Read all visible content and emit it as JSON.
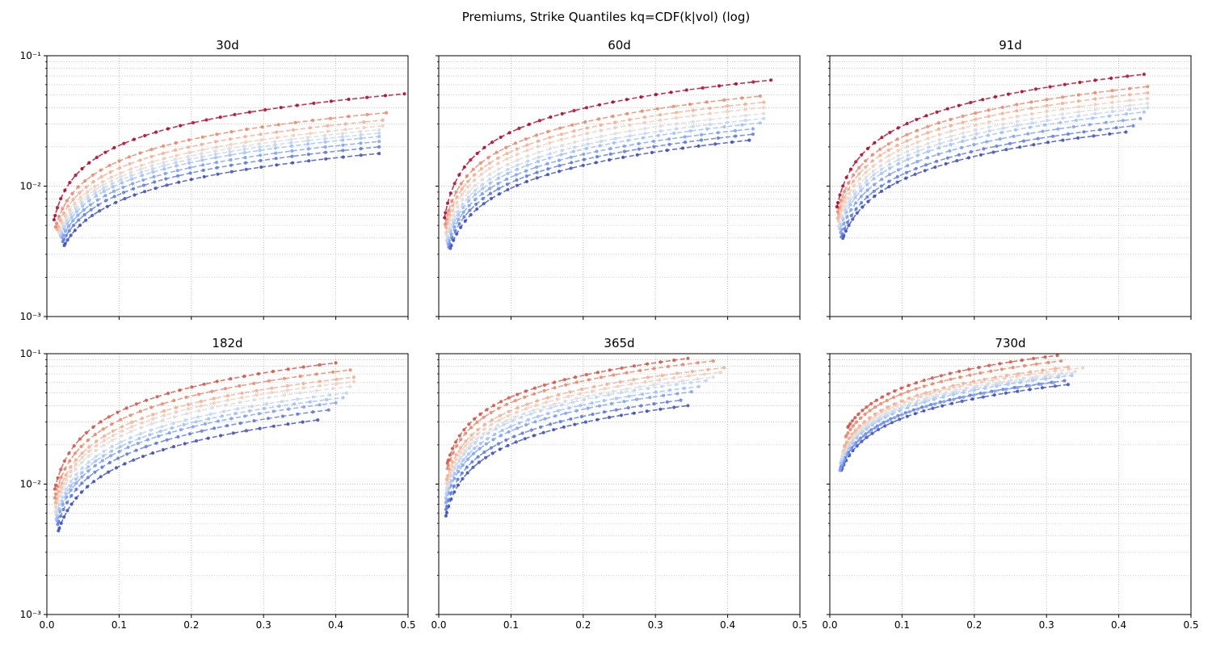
{
  "figure": {
    "title": "Premiums, Strike Quantiles kq=CDF(k|vol) (log)"
  },
  "colors": {
    "palette": [
      "#3b4cc0",
      "#5a78e4",
      "#7b9ff9",
      "#9ebeff",
      "#c0d4f5",
      "#dddcdc",
      "#f2cbb7",
      "#f7ac8e",
      "#ee8468",
      "#d65244",
      "#b40426"
    ]
  },
  "chart_data": [
    {
      "type": "line",
      "title": "30d",
      "xlim": [
        0,
        0.5
      ],
      "ylim": [
        0.001,
        0.1
      ],
      "yscale": "log",
      "grid": "major and minor, dotted",
      "xticks": [
        "0.0",
        "0.1",
        "0.2",
        "0.3",
        "0.4",
        "0.5"
      ],
      "yticks": [
        "10⁻³",
        "10⁻²",
        "10⁻¹"
      ],
      "show_xticklabels": false,
      "show_yticklabels": true,
      "series": [
        {
          "color_index": 0,
          "x0": 0.024,
          "x1": 0.46,
          "y_end": 0.0178,
          "b": 0.55,
          "n": 30
        },
        {
          "color_index": 1,
          "x0": 0.022,
          "x1": 0.46,
          "y_end": 0.02,
          "b": 0.55,
          "n": 30
        },
        {
          "color_index": 2,
          "x0": 0.021,
          "x1": 0.46,
          "y_end": 0.022,
          "b": 0.55,
          "n": 30
        },
        {
          "color_index": 3,
          "x0": 0.019,
          "x1": 0.46,
          "y_end": 0.024,
          "b": 0.55,
          "n": 30
        },
        {
          "color_index": 4,
          "x0": 0.018,
          "x1": 0.46,
          "y_end": 0.0255,
          "b": 0.55,
          "n": 30
        },
        {
          "color_index": 5,
          "x0": 0.017,
          "x1": 0.46,
          "y_end": 0.027,
          "b": 0.55,
          "n": 30
        },
        {
          "color_index": 6,
          "x0": 0.016,
          "x1": 0.465,
          "y_end": 0.029,
          "b": 0.55,
          "n": 30
        },
        {
          "color_index": 7,
          "x0": 0.014,
          "x1": 0.465,
          "y_end": 0.032,
          "b": 0.55,
          "n": 30
        },
        {
          "color_index": 8,
          "x0": 0.012,
          "x1": 0.47,
          "y_end": 0.0365,
          "b": 0.55,
          "n": 30
        },
        {
          "color_index": 10,
          "x0": 0.01,
          "x1": 0.495,
          "y_end": 0.051,
          "b": 0.57,
          "n": 32
        }
      ]
    },
    {
      "type": "line",
      "title": "60d",
      "xlim": [
        0,
        0.5
      ],
      "ylim": [
        0.001,
        0.1
      ],
      "yscale": "log",
      "grid": "major and minor, dotted",
      "xticks": [
        "0.0",
        "0.1",
        "0.2",
        "0.3",
        "0.4",
        "0.5"
      ],
      "yticks": [
        "10⁻³",
        "10⁻²",
        "10⁻¹"
      ],
      "show_xticklabels": false,
      "show_yticklabels": false,
      "series": [
        {
          "color_index": 0,
          "x0": 0.016,
          "x1": 0.43,
          "y_end": 0.0225,
          "b": 0.58,
          "n": 30
        },
        {
          "color_index": 1,
          "x0": 0.014,
          "x1": 0.435,
          "y_end": 0.025,
          "b": 0.58,
          "n": 30
        },
        {
          "color_index": 2,
          "x0": 0.013,
          "x1": 0.435,
          "y_end": 0.0275,
          "b": 0.58,
          "n": 30
        },
        {
          "color_index": 3,
          "x0": 0.012,
          "x1": 0.445,
          "y_end": 0.0305,
          "b": 0.58,
          "n": 30
        },
        {
          "color_index": 4,
          "x0": 0.011,
          "x1": 0.45,
          "y_end": 0.033,
          "b": 0.58,
          "n": 30
        },
        {
          "color_index": 5,
          "x0": 0.011,
          "x1": 0.45,
          "y_end": 0.036,
          "b": 0.58,
          "n": 30
        },
        {
          "color_index": 6,
          "x0": 0.01,
          "x1": 0.45,
          "y_end": 0.04,
          "b": 0.58,
          "n": 30
        },
        {
          "color_index": 7,
          "x0": 0.01,
          "x1": 0.45,
          "y_end": 0.044,
          "b": 0.58,
          "n": 30
        },
        {
          "color_index": 8,
          "x0": 0.009,
          "x1": 0.445,
          "y_end": 0.049,
          "b": 0.58,
          "n": 30
        },
        {
          "color_index": 10,
          "x0": 0.008,
          "x1": 0.46,
          "y_end": 0.065,
          "b": 0.6,
          "n": 32
        }
      ]
    },
    {
      "type": "line",
      "title": "91d",
      "xlim": [
        0,
        0.5
      ],
      "ylim": [
        0.001,
        0.1
      ],
      "yscale": "log",
      "grid": "major and minor, dotted",
      "xticks": [
        "0.0",
        "0.1",
        "0.2",
        "0.3",
        "0.4",
        "0.5"
      ],
      "yticks": [
        "10⁻³",
        "10⁻²",
        "10⁻¹"
      ],
      "show_xticklabels": false,
      "show_yticklabels": false,
      "series": [
        {
          "color_index": 0,
          "x0": 0.018,
          "x1": 0.41,
          "y_end": 0.026,
          "b": 0.6,
          "n": 30
        },
        {
          "color_index": 1,
          "x0": 0.016,
          "x1": 0.42,
          "y_end": 0.029,
          "b": 0.6,
          "n": 30
        },
        {
          "color_index": 2,
          "x0": 0.015,
          "x1": 0.43,
          "y_end": 0.033,
          "b": 0.6,
          "n": 30
        },
        {
          "color_index": 3,
          "x0": 0.014,
          "x1": 0.435,
          "y_end": 0.037,
          "b": 0.6,
          "n": 30
        },
        {
          "color_index": 4,
          "x0": 0.013,
          "x1": 0.44,
          "y_end": 0.04,
          "b": 0.6,
          "n": 30
        },
        {
          "color_index": 5,
          "x0": 0.012,
          "x1": 0.44,
          "y_end": 0.043,
          "b": 0.6,
          "n": 30
        },
        {
          "color_index": 6,
          "x0": 0.012,
          "x1": 0.44,
          "y_end": 0.047,
          "b": 0.6,
          "n": 30
        },
        {
          "color_index": 7,
          "x0": 0.011,
          "x1": 0.44,
          "y_end": 0.052,
          "b": 0.6,
          "n": 30
        },
        {
          "color_index": 8,
          "x0": 0.011,
          "x1": 0.44,
          "y_end": 0.058,
          "b": 0.6,
          "n": 30
        },
        {
          "color_index": 10,
          "x0": 0.01,
          "x1": 0.435,
          "y_end": 0.072,
          "b": 0.62,
          "n": 32
        }
      ]
    },
    {
      "type": "line",
      "title": "182d",
      "xlim": [
        0,
        0.5
      ],
      "ylim": [
        0.001,
        0.1
      ],
      "yscale": "log",
      "grid": "major and minor, dotted",
      "xticks": [
        "0.0",
        "0.1",
        "0.2",
        "0.3",
        "0.4",
        "0.5"
      ],
      "yticks": [
        "10⁻³",
        "10⁻²",
        "10⁻¹"
      ],
      "show_xticklabels": true,
      "show_yticklabels": true,
      "series": [
        {
          "color_index": 0,
          "x0": 0.016,
          "x1": 0.375,
          "y_end": 0.031,
          "b": 0.62,
          "n": 30
        },
        {
          "color_index": 1,
          "x0": 0.015,
          "x1": 0.39,
          "y_end": 0.037,
          "b": 0.62,
          "n": 30
        },
        {
          "color_index": 2,
          "x0": 0.014,
          "x1": 0.4,
          "y_end": 0.042,
          "b": 0.62,
          "n": 30
        },
        {
          "color_index": 3,
          "x0": 0.013,
          "x1": 0.41,
          "y_end": 0.046,
          "b": 0.62,
          "n": 30
        },
        {
          "color_index": 4,
          "x0": 0.013,
          "x1": 0.415,
          "y_end": 0.05,
          "b": 0.62,
          "n": 30
        },
        {
          "color_index": 5,
          "x0": 0.012,
          "x1": 0.42,
          "y_end": 0.056,
          "b": 0.62,
          "n": 30
        },
        {
          "color_index": 6,
          "x0": 0.012,
          "x1": 0.425,
          "y_end": 0.061,
          "b": 0.62,
          "n": 30
        },
        {
          "color_index": 7,
          "x0": 0.012,
          "x1": 0.425,
          "y_end": 0.066,
          "b": 0.62,
          "n": 30
        },
        {
          "color_index": 8,
          "x0": 0.011,
          "x1": 0.42,
          "y_end": 0.075,
          "b": 0.62,
          "n": 30
        },
        {
          "color_index": 9,
          "x0": 0.011,
          "x1": 0.4,
          "y_end": 0.085,
          "b": 0.62,
          "n": 30
        }
      ]
    },
    {
      "type": "line",
      "title": "365d",
      "xlim": [
        0,
        0.5
      ],
      "ylim": [
        0.001,
        0.1
      ],
      "yscale": "log",
      "grid": "major and minor, dotted",
      "xticks": [
        "0.0",
        "0.1",
        "0.2",
        "0.3",
        "0.4",
        "0.5"
      ],
      "yticks": [
        "10⁻³",
        "10⁻²",
        "10⁻¹"
      ],
      "show_xticklabels": true,
      "show_yticklabels": false,
      "series": [
        {
          "color_index": 0,
          "x0": 0.01,
          "x1": 0.345,
          "y_end": 0.04,
          "b": 0.55,
          "n": 30
        },
        {
          "color_index": 1,
          "x0": 0.01,
          "x1": 0.335,
          "y_end": 0.044,
          "b": 0.55,
          "n": 30
        },
        {
          "color_index": 2,
          "x0": 0.01,
          "x1": 0.35,
          "y_end": 0.051,
          "b": 0.55,
          "n": 30
        },
        {
          "color_index": 3,
          "x0": 0.01,
          "x1": 0.36,
          "y_end": 0.056,
          "b": 0.55,
          "n": 30
        },
        {
          "color_index": 4,
          "x0": 0.01,
          "x1": 0.37,
          "y_end": 0.062,
          "b": 0.55,
          "n": 30
        },
        {
          "color_index": 5,
          "x0": 0.011,
          "x1": 0.38,
          "y_end": 0.066,
          "b": 0.55,
          "n": 30
        },
        {
          "color_index": 6,
          "x0": 0.011,
          "x1": 0.39,
          "y_end": 0.072,
          "b": 0.55,
          "n": 30
        },
        {
          "color_index": 7,
          "x0": 0.011,
          "x1": 0.395,
          "y_end": 0.078,
          "b": 0.55,
          "n": 30
        },
        {
          "color_index": 8,
          "x0": 0.012,
          "x1": 0.38,
          "y_end": 0.088,
          "b": 0.55,
          "n": 30
        },
        {
          "color_index": 9,
          "x0": 0.012,
          "x1": 0.345,
          "y_end": 0.092,
          "b": 0.55,
          "n": 30
        }
      ]
    },
    {
      "type": "line",
      "title": "730d",
      "xlim": [
        0,
        0.5
      ],
      "ylim": [
        0.001,
        0.1
      ],
      "yscale": "log",
      "grid": "major and minor, dotted",
      "xticks": [
        "0.0",
        "0.1",
        "0.2",
        "0.3",
        "0.4",
        "0.5"
      ],
      "yticks": [
        "10⁻³",
        "10⁻²",
        "10⁻¹"
      ],
      "show_xticklabels": true,
      "show_yticklabels": false,
      "series": [
        {
          "color_index": 0,
          "x0": 0.016,
          "x1": 0.33,
          "y_end": 0.058,
          "b": 0.5,
          "n": 30
        },
        {
          "color_index": 1,
          "x0": 0.015,
          "x1": 0.325,
          "y_end": 0.062,
          "b": 0.5,
          "n": 30
        },
        {
          "color_index": 2,
          "x0": 0.014,
          "x1": 0.31,
          "y_end": 0.06,
          "b": 0.5,
          "n": 30
        },
        {
          "color_index": 3,
          "x0": 0.015,
          "x1": 0.335,
          "y_end": 0.068,
          "b": 0.5,
          "n": 30
        },
        {
          "color_index": 4,
          "x0": 0.016,
          "x1": 0.335,
          "y_end": 0.07,
          "b": 0.5,
          "n": 30
        },
        {
          "color_index": 5,
          "x0": 0.017,
          "x1": 0.34,
          "y_end": 0.073,
          "b": 0.5,
          "n": 30
        },
        {
          "color_index": 6,
          "x0": 0.018,
          "x1": 0.35,
          "y_end": 0.078,
          "b": 0.5,
          "n": 30
        },
        {
          "color_index": 7,
          "x0": 0.02,
          "x1": 0.33,
          "y_end": 0.079,
          "b": 0.5,
          "n": 30
        },
        {
          "color_index": 8,
          "x0": 0.022,
          "x1": 0.32,
          "y_end": 0.088,
          "b": 0.5,
          "n": 30
        },
        {
          "color_index": 9,
          "x0": 0.025,
          "x1": 0.315,
          "y_end": 0.097,
          "b": 0.5,
          "n": 30
        }
      ]
    }
  ]
}
